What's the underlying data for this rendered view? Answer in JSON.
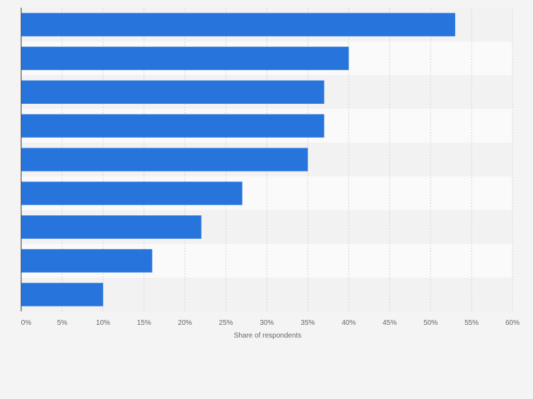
{
  "chart_data": {
    "type": "bar",
    "orientation": "horizontal",
    "categories": [
      "",
      "",
      "",
      "",
      "",
      "",
      "",
      "",
      ""
    ],
    "values": [
      53,
      40,
      37,
      37,
      35,
      27,
      22,
      16,
      10
    ],
    "title": "",
    "xlabel": "Share of respondents",
    "ylabel": "",
    "xlim": [
      0,
      60
    ],
    "xticks": [
      0,
      5,
      10,
      15,
      20,
      25,
      30,
      35,
      40,
      45,
      50,
      55,
      60
    ],
    "xtick_labels": [
      "0%",
      "5%",
      "10%",
      "15%",
      "20%",
      "25%",
      "30%",
      "35%",
      "40%",
      "45%",
      "50%",
      "55%",
      "60%"
    ],
    "grid": true,
    "legend": "none"
  },
  "colors": {
    "bar": "#2774dc",
    "page_background": "#f4f4f4",
    "band_light": "#fafafa",
    "band_dark": "#f2f2f2",
    "grid": "#d4d4d4",
    "axis": "#333333",
    "tick_text": "#666666"
  }
}
